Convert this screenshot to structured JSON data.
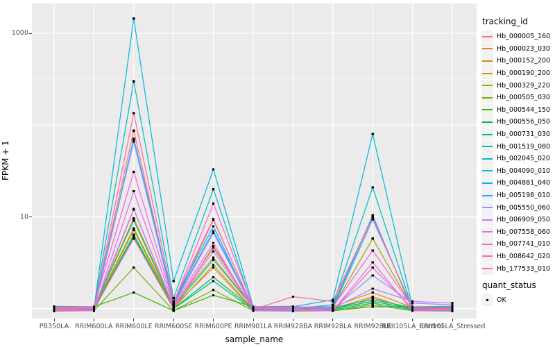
{
  "chart": {
    "chart_data": {
      "type": "line",
      "title": "",
      "xlabel": "sample_name",
      "ylabel": "FPKM + 1",
      "y_scale": "log10",
      "ylim": [
        0.78,
        2075
      ],
      "y_tick_labels": [
        "1000",
        "10"
      ],
      "y_tick_values": [
        1000,
        10
      ],
      "major_gridline_values": [
        1,
        10,
        100,
        1000
      ],
      "minor_gridline_values": [
        3.16,
        31.6,
        316
      ],
      "grid": true,
      "legend_position": "right",
      "panel_bg": "#EBEBEB",
      "grid_color": "#FFFFFF",
      "point_color": "#000000",
      "tick_text_color": "#4D4D4D",
      "categories": [
        "PB350LA",
        "RRIM600LA",
        "RRIM600LE",
        "RRIM600SE",
        "RRIM600PE",
        "RRIM901LA",
        "RRIM928BA",
        "RRIM928LA",
        "RRIM928LE",
        "RRII105LA_Control",
        "RRII105LA_Stressed"
      ],
      "series": [
        {
          "id": "Hb_000005_160",
          "color": "#F8766D",
          "values": [
            1.0,
            1.0,
            87,
            1.1,
            9.3,
            1.0,
            1.0,
            1.1,
            10.0,
            1.0,
            1.0
          ]
        },
        {
          "id": "Hb_000023_030",
          "color": "#EA8331",
          "values": [
            0.96,
            0.97,
            12,
            1.05,
            2.8,
            0.96,
            0.97,
            1.0,
            1.35,
            0.97,
            0.96
          ]
        },
        {
          "id": "Hb_000152_200",
          "color": "#D89000",
          "values": [
            1.04,
            1.03,
            9.6,
            1.1,
            3.6,
            1.03,
            1.04,
            1.05,
            1.5,
            1.03,
            1.04
          ]
        },
        {
          "id": "Hb_000190_200",
          "color": "#C09B00",
          "values": [
            0.98,
            0.99,
            7.2,
            1.0,
            3.0,
            0.98,
            0.99,
            0.98,
            1.3,
            0.99,
            0.98
          ]
        },
        {
          "id": "Hb_000329_220",
          "color": "#A3A500",
          "values": [
            1.02,
            1.02,
            7.5,
            1.05,
            4.6,
            1.02,
            1.02,
            1.02,
            5.8,
            1.02,
            1.02
          ]
        },
        {
          "id": "Hb_000505_030",
          "color": "#7CAE00",
          "values": [
            0.94,
            0.95,
            2.8,
            0.95,
            1.6,
            0.95,
            0.94,
            0.95,
            1.1,
            0.95,
            0.94
          ]
        },
        {
          "id": "Hb_000544_150",
          "color": "#39B600",
          "values": [
            1.06,
            1.05,
            1.5,
            0.95,
            1.4,
            1.05,
            1.06,
            0.95,
            1.05,
            1.05,
            1.06
          ]
        },
        {
          "id": "Hb_000556_050",
          "color": "#00BB4E",
          "values": [
            1.0,
            1.0,
            6.4,
            1.0,
            2.2,
            1.0,
            1.0,
            1.0,
            1.2,
            1.0,
            1.0
          ]
        },
        {
          "id": "Hb_000731_030",
          "color": "#00BF7D",
          "values": [
            0.97,
            0.97,
            6.1,
            1.0,
            2.0,
            0.97,
            0.97,
            0.97,
            1.15,
            0.97,
            0.97
          ]
        },
        {
          "id": "Hb_001519_080",
          "color": "#00C1A3",
          "values": [
            1.03,
            1.03,
            9.1,
            1.05,
            3.4,
            1.03,
            1.03,
            1.03,
            1.25,
            1.03,
            1.03
          ]
        },
        {
          "id": "Hb_002045_020",
          "color": "#00BFC4",
          "values": [
            1.0,
            1.0,
            300,
            1.3,
            20,
            1.0,
            1.0,
            1.1,
            21,
            1.0,
            1.0
          ]
        },
        {
          "id": "Hb_004090_010",
          "color": "#00BAE0",
          "values": [
            1.0,
            1.0,
            1450,
            2.0,
            33,
            1.05,
            1.05,
            1.25,
            80,
            1.05,
            1.0
          ]
        },
        {
          "id": "Hb_004881_040",
          "color": "#00B0F6",
          "values": [
            0.95,
            0.96,
            71,
            1.2,
            7.9,
            0.96,
            0.95,
            1.05,
            10.4,
            0.96,
            0.95
          ]
        },
        {
          "id": "Hb_005198_010",
          "color": "#35A2FF",
          "values": [
            1.05,
            1.04,
            68,
            1.15,
            7.0,
            1.04,
            1.05,
            1.0,
            9.4,
            1.04,
            1.05
          ]
        },
        {
          "id": "Hb_005550_060",
          "color": "#9590FF",
          "values": [
            0.99,
            0.98,
            66,
            1.1,
            6.7,
            0.99,
            0.98,
            0.99,
            2.3,
            1.15,
            1.1
          ]
        },
        {
          "id": "Hb_006909_050",
          "color": "#C77CFF",
          "values": [
            1.01,
            1.02,
            12.2,
            1.05,
            4.2,
            1.01,
            1.02,
            1.01,
            1.65,
            1.2,
            1.15
          ]
        },
        {
          "id": "Hb_007558_060",
          "color": "#E76BF3",
          "values": [
            0.96,
            0.95,
            19,
            1.1,
            5.2,
            0.95,
            0.96,
            0.95,
            3.2,
            0.95,
            0.96
          ]
        },
        {
          "id": "Hb_007741_010",
          "color": "#FA62DB",
          "values": [
            1.04,
            1.05,
            31,
            1.15,
            14,
            1.05,
            1.04,
            1.05,
            4.3,
            1.05,
            1.04
          ]
        },
        {
          "id": "Hb_008642_020",
          "color": "#FF62BC",
          "values": [
            1.0,
            1.0,
            5.8,
            1.0,
            4.8,
            1.0,
            1.0,
            0.95,
            2.8,
            1.0,
            1.0
          ]
        },
        {
          "id": "Hb_177533_010",
          "color": "#FF6A98",
          "values": [
            0.98,
            0.98,
            135,
            1.2,
            9.5,
            0.98,
            1.35,
            1.2,
            10.0,
            0.98,
            0.98
          ]
        }
      ],
      "legend": {
        "tracking_title": "tracking_id",
        "quant_title": "quant_status",
        "quant_items": [
          {
            "label": "OK"
          }
        ]
      }
    }
  }
}
